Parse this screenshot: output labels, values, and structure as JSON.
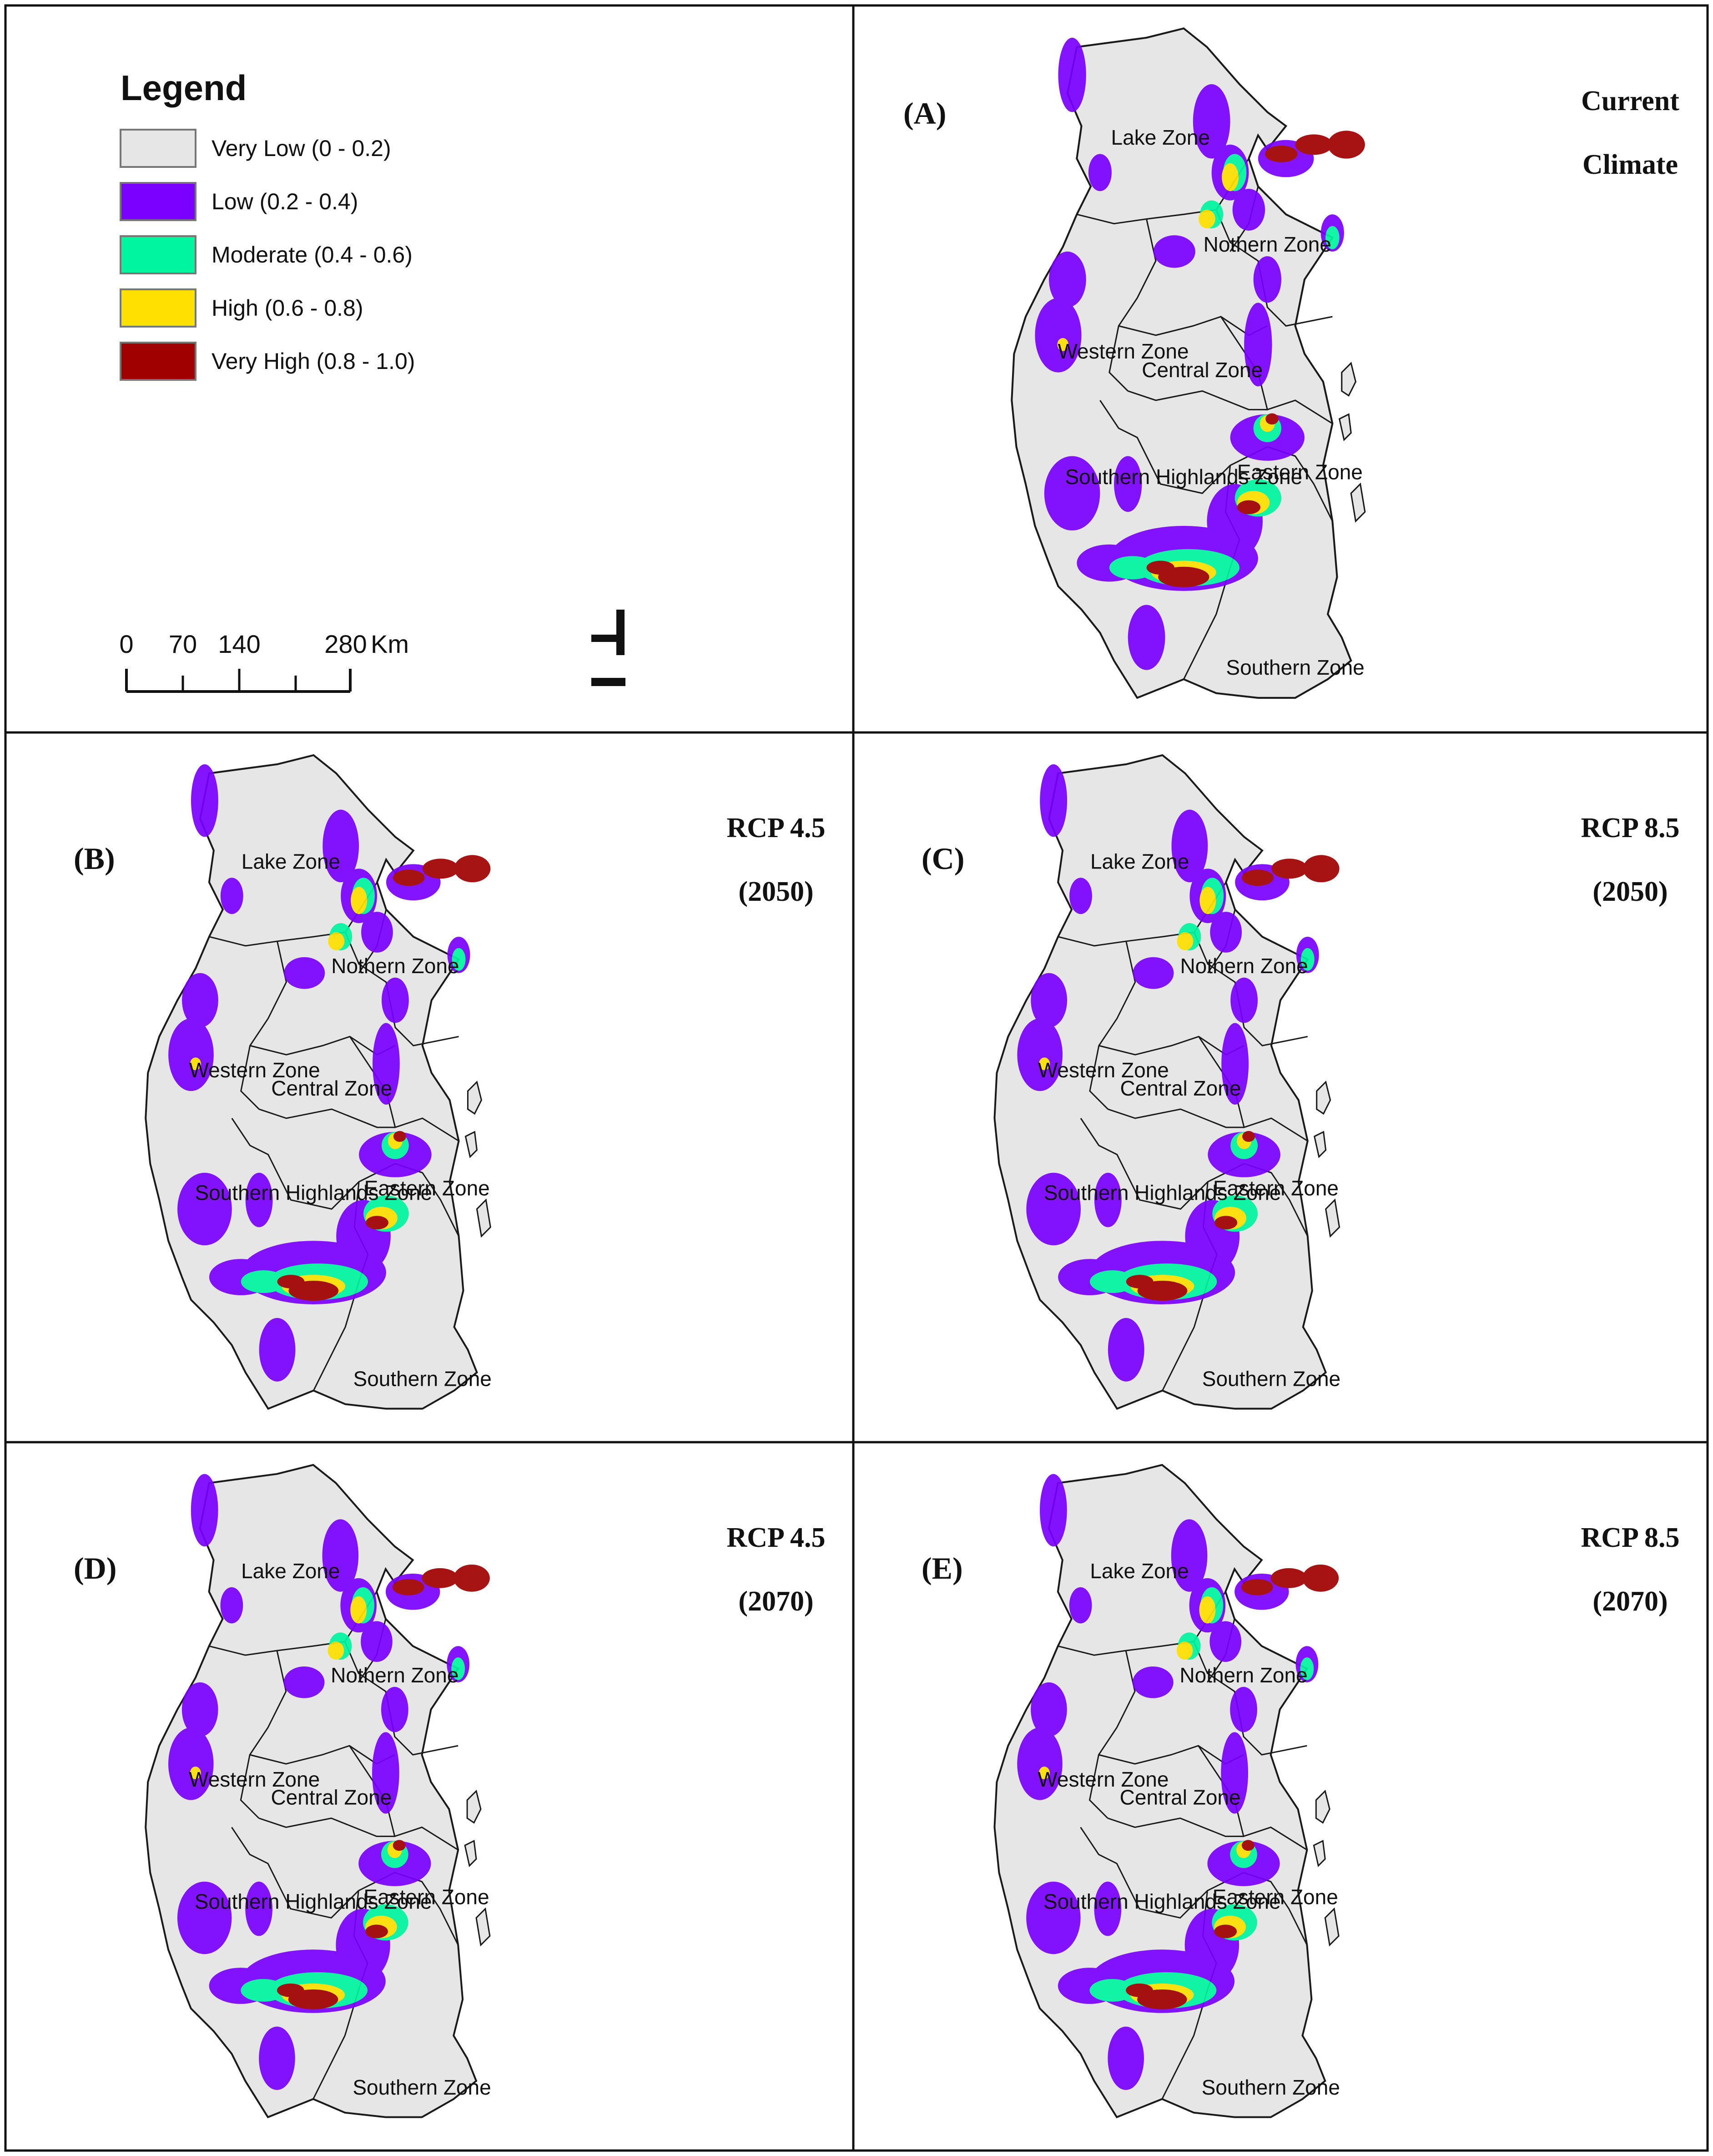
{
  "legend": {
    "title": "Legend",
    "classes": [
      {
        "label": "Very Low (0 - 0.2)",
        "color": "#e6e6e6"
      },
      {
        "label": "Low (0.2 - 0.4)",
        "color": "#7a00ff"
      },
      {
        "label": "Moderate (0.4 - 0.6)",
        "color": "#00f5a0"
      },
      {
        "label": "High (0.6 - 0.8)",
        "color": "#ffe000"
      },
      {
        "label": "Very High (0.8 - 1.0)",
        "color": "#a00000"
      }
    ]
  },
  "scale_bar": {
    "ticks": [
      "0",
      "70",
      "140",
      "280"
    ],
    "unit": "Km"
  },
  "zones": [
    "Lake Zone",
    "Nothern Zone",
    "Western Zone",
    "Central Zone",
    "Southern Highlands Zone",
    "Eastern Zone",
    "Southern Zone"
  ],
  "panels": [
    {
      "id": "(A)",
      "line1": "Current",
      "line2": "Climate"
    },
    {
      "id": "(B)",
      "line1": "RCP 4.5",
      "line2": "(2050)"
    },
    {
      "id": "(C)",
      "line1": "RCP 8.5",
      "line2": "(2050)"
    },
    {
      "id": "(D)",
      "line1": "RCP 4.5",
      "line2": "(2070)"
    },
    {
      "id": "(E)",
      "line1": "RCP 8.5",
      "line2": "(2070)"
    }
  ],
  "map_colors": {
    "land": "#e6e6e6",
    "boundary": "#1a1a1a"
  },
  "icons": {
    "north_arrow": "north-arrow-icon"
  }
}
